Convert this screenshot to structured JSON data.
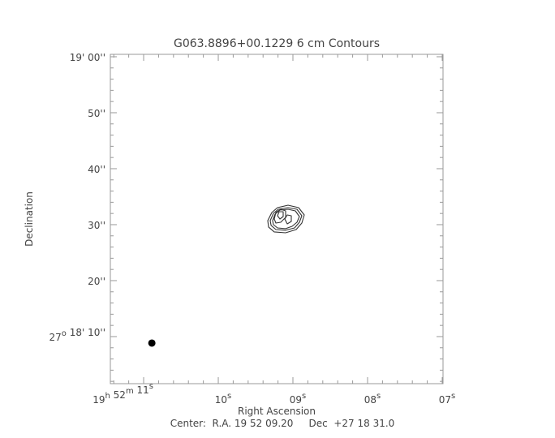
{
  "chart_data": {
    "type": "contour",
    "title": "G063.8896+00.1229 6 cm Contours",
    "xlabel": "Right Ascension",
    "ylabel": "Declination",
    "footer": "Center:  R.A. 19 52 09.20     Dec  +27 18 31.0",
    "x_units": "RA seconds (19h 52m)",
    "y_units": "Dec arcsec (past +27 18')",
    "xlim": [
      11.446,
      6.989
    ],
    "ylim": [
      1.59,
      60.43
    ],
    "x_ticks": [
      {
        "value": 11,
        "parts": [
          [
            "19",
            "h"
          ],
          [
            " 52",
            "m"
          ],
          [
            " 11",
            "s"
          ]
        ]
      },
      {
        "value": 10,
        "parts": [
          [
            "10",
            "s"
          ]
        ]
      },
      {
        "value": 9,
        "parts": [
          [
            "09",
            "s"
          ]
        ]
      },
      {
        "value": 8,
        "parts": [
          [
            "08",
            "s"
          ]
        ]
      },
      {
        "value": 7,
        "parts": [
          [
            "07",
            "s"
          ]
        ]
      }
    ],
    "y_ticks": [
      {
        "value": 60,
        "parts": [
          [
            "19' 00''",
            ""
          ]
        ]
      },
      {
        "value": 50,
        "parts": [
          [
            "50''",
            ""
          ]
        ]
      },
      {
        "value": 40,
        "parts": [
          [
            "40''",
            ""
          ]
        ]
      },
      {
        "value": 30,
        "parts": [
          [
            "30''",
            ""
          ]
        ]
      },
      {
        "value": 20,
        "parts": [
          [
            "20''",
            ""
          ]
        ]
      },
      {
        "value": 10,
        "parts": [
          [
            "27",
            "o"
          ],
          [
            " 18' 10''",
            ""
          ]
        ]
      }
    ],
    "x_minor_step": 0.2,
    "y_minor_step": 2,
    "beam": {
      "x": 10.89,
      "y": 8.84
    },
    "contours": [
      [
        [
          9.337,
          30.72
        ],
        [
          9.283,
          32.17
        ],
        [
          9.207,
          33.04
        ],
        [
          9.065,
          33.48
        ],
        [
          8.924,
          33.04
        ],
        [
          8.848,
          31.74
        ],
        [
          8.88,
          30.29
        ],
        [
          8.957,
          29.13
        ],
        [
          9.098,
          28.55
        ],
        [
          9.25,
          28.7
        ],
        [
          9.326,
          29.57
        ]
      ],
      [
        [
          9.304,
          30.72
        ],
        [
          9.261,
          32.03
        ],
        [
          9.196,
          32.75
        ],
        [
          9.065,
          33.04
        ],
        [
          8.946,
          32.75
        ],
        [
          8.88,
          31.59
        ],
        [
          8.913,
          30.43
        ],
        [
          8.978,
          29.42
        ],
        [
          9.098,
          28.99
        ],
        [
          9.228,
          29.13
        ],
        [
          9.293,
          29.86
        ]
      ],
      [
        [
          9.272,
          30.72
        ],
        [
          9.239,
          31.88
        ],
        [
          9.174,
          32.61
        ],
        [
          9.065,
          32.75
        ],
        [
          8.967,
          32.46
        ],
        [
          8.913,
          31.45
        ],
        [
          8.946,
          30.43
        ],
        [
          9.011,
          29.71
        ],
        [
          9.098,
          29.28
        ],
        [
          9.207,
          29.42
        ],
        [
          9.261,
          30.0
        ]
      ],
      [
        [
          9.25,
          31.01
        ],
        [
          9.228,
          32.17
        ],
        [
          9.163,
          32.75
        ],
        [
          9.098,
          32.46
        ],
        [
          9.098,
          31.3
        ],
        [
          9.163,
          30.43
        ],
        [
          9.228,
          30.29
        ]
      ],
      [
        [
          9.207,
          31.59
        ],
        [
          9.185,
          32.32
        ],
        [
          9.13,
          32.32
        ],
        [
          9.13,
          31.45
        ],
        [
          9.174,
          31.01
        ]
      ],
      [
        [
          9.109,
          31.01
        ],
        [
          9.076,
          31.74
        ],
        [
          9.022,
          31.59
        ],
        [
          9.022,
          30.58
        ],
        [
          9.076,
          30.14
        ]
      ]
    ],
    "colors": {
      "axis": "#999999",
      "contour": "#333333",
      "text": "#444444"
    }
  }
}
